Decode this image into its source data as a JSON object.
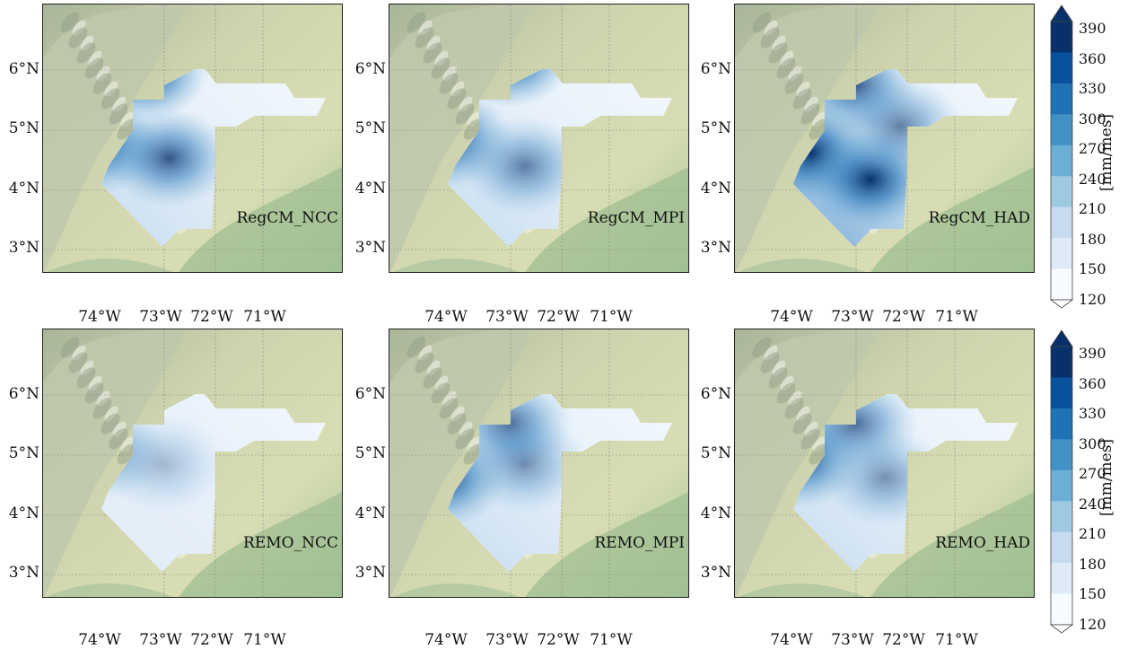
{
  "lat_labels": [
    "6°N",
    "5°N",
    "4°N",
    "3°N"
  ],
  "lon_labels": [
    "74°W",
    "73°W",
    "72°W",
    "71°W"
  ],
  "panels": [
    {
      "label": "RegCM_NCC",
      "intensity": 0.55,
      "hot": [
        [
          0.34,
          0.25,
          1.0
        ],
        [
          0.18,
          0.52,
          0.9
        ],
        [
          0.42,
          0.57,
          0.8
        ]
      ]
    },
    {
      "label": "RegCM_MPI",
      "intensity": 0.55,
      "hot": [
        [
          0.4,
          0.2,
          1.0
        ],
        [
          0.2,
          0.5,
          0.85
        ],
        [
          0.45,
          0.6,
          0.6
        ]
      ]
    },
    {
      "label": "RegCM_HAD",
      "intensity": 0.85,
      "hot": [
        [
          0.4,
          0.3,
          0.8
        ],
        [
          0.25,
          0.55,
          1.0
        ],
        [
          0.45,
          0.65,
          1.0
        ],
        [
          0.55,
          0.45,
          0.6
        ]
      ]
    },
    {
      "label": "REMO_NCC",
      "intensity": 0.35,
      "hot": [
        [
          0.2,
          0.45,
          0.5
        ],
        [
          0.4,
          0.5,
          0.3
        ]
      ]
    },
    {
      "label": "REMO_MPI",
      "intensity": 0.55,
      "hot": [
        [
          0.18,
          0.55,
          0.9
        ],
        [
          0.4,
          0.35,
          0.7
        ],
        [
          0.45,
          0.5,
          0.5
        ]
      ]
    },
    {
      "label": "REMO_HAD",
      "intensity": 0.6,
      "hot": [
        [
          0.22,
          0.48,
          0.9
        ],
        [
          0.4,
          0.35,
          0.7
        ],
        [
          0.5,
          0.55,
          0.5
        ]
      ]
    }
  ],
  "colorbar": {
    "title": "[mm/mes]",
    "ticks": [
      "390",
      "360",
      "330",
      "300",
      "270",
      "240",
      "210",
      "180",
      "150",
      "120"
    ],
    "colors": [
      "#f7fbff",
      "#deebf7",
      "#c6dbef",
      "#9ecae1",
      "#6baed6",
      "#4292c6",
      "#2171b5",
      "#08519c",
      "#08306b"
    ]
  }
}
